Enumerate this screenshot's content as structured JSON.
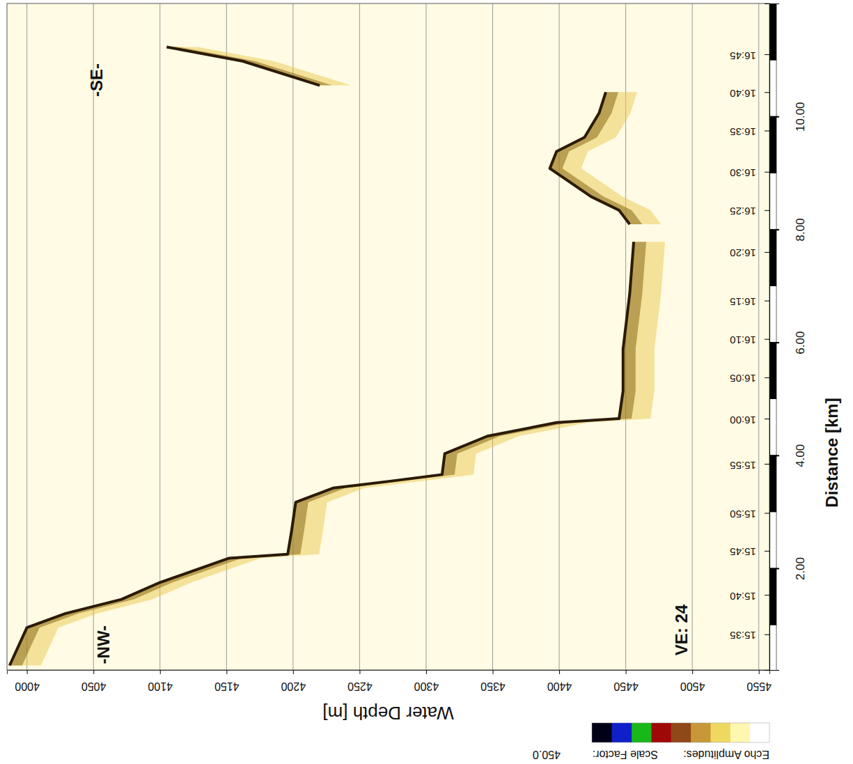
{
  "chart_data": {
    "type": "echogram",
    "x_label": "Water Depth [m]",
    "y_label": "Distance [km]",
    "xlim": [
      3985,
      4558
    ],
    "xticks": [
      4000,
      4050,
      4100,
      4150,
      4200,
      4250,
      4300,
      4350,
      4400,
      4450,
      4500,
      4550
    ],
    "ylim": [
      0.2,
      12.0
    ],
    "yticks": [
      {
        "value": 2,
        "label": "2.00"
      },
      {
        "value": 4,
        "label": "4.00"
      },
      {
        "value": 6,
        "label": "6.00"
      },
      {
        "value": 8,
        "label": "8.00"
      },
      {
        "value": 10,
        "label": "10.00"
      }
    ],
    "y2lim": [
      0.2,
      12.0
    ],
    "y2ticks": [
      {
        "value": 0.83,
        "label": "15:35"
      },
      {
        "value": 1.53,
        "label": "15:40"
      },
      {
        "value": 2.31,
        "label": "15:45"
      },
      {
        "value": 2.98,
        "label": "15:50"
      },
      {
        "value": 3.85,
        "label": "15:55"
      },
      {
        "value": 4.65,
        "label": "16:00"
      },
      {
        "value": 5.38,
        "label": "16:05"
      },
      {
        "value": 6.06,
        "label": "16:10"
      },
      {
        "value": 6.74,
        "label": "16:15"
      },
      {
        "value": 7.6,
        "label": "16:20"
      },
      {
        "value": 8.34,
        "label": "16:25"
      },
      {
        "value": 9.02,
        "label": "16:30"
      },
      {
        "value": 9.75,
        "label": "16:35"
      },
      {
        "value": 10.43,
        "label": "16:40"
      },
      {
        "value": 11.1,
        "label": "16:45"
      }
    ],
    "grid": true,
    "color": "#2a1a05",
    "x": [
      3987,
      4000,
      4029,
      4071,
      4100,
      4152,
      4196,
      4199,
      4202,
      4230,
      4272,
      4312,
      4314,
      4346,
      4398,
      4445,
      4448,
      4448,
      4453,
      4456,
      null,
      4453,
      4445,
      4424,
      4393,
      4398,
      4419,
      4430,
      4435,
      null,
      4220,
      4162,
      4105
    ],
    "values": [
      0.28,
      0.95,
      1.2,
      1.45,
      1.75,
      2.18,
      2.25,
      2.68,
      3.17,
      3.42,
      3.54,
      3.66,
      4.03,
      4.34,
      4.58,
      4.65,
      5.14,
      5.88,
      6.86,
      7.78,
      null,
      8.09,
      8.34,
      8.58,
      9.08,
      9.38,
      9.63,
      10.06,
      10.43,
      null,
      10.55,
      10.98,
      11.23
    ],
    "annotations": [
      "-NW-",
      "-SE-",
      "VE: 24"
    ],
    "colorbar": {
      "label": "Echo Amplitudes:",
      "scale_label": "Scale Factor:",
      "scale_factor": {
        "value": 450,
        "label": "450.0"
      },
      "colors": [
        "#ffffff",
        "#fff6b0",
        "#efd860",
        "#c89838",
        "#904818",
        "#a00808",
        "#18b818",
        "#1020c8",
        "#000018"
      ]
    }
  }
}
